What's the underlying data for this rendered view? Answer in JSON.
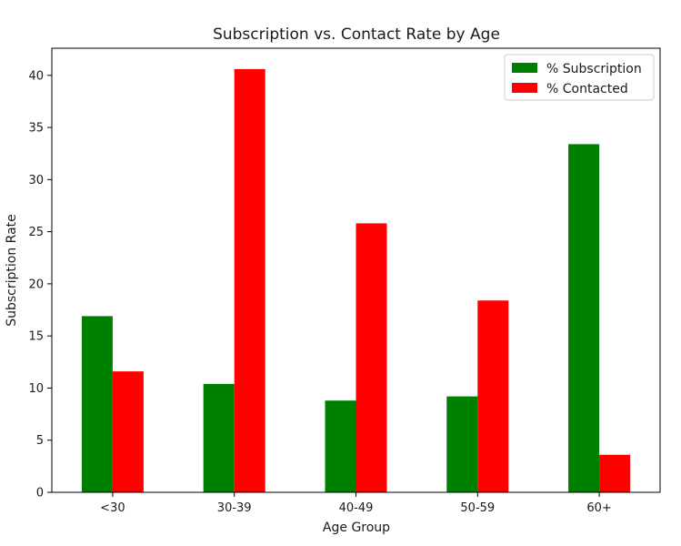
{
  "chart_data": {
    "type": "bar",
    "title": "Subscription vs. Contact Rate by Age",
    "xlabel": "Age Group",
    "ylabel": "Subscription Rate",
    "categories": [
      "<30",
      "30-39",
      "40-49",
      "50-59",
      "60+"
    ],
    "series": [
      {
        "name": "% Subscription",
        "color": "#008000",
        "values": [
          16.9,
          10.4,
          8.8,
          9.2,
          33.4
        ]
      },
      {
        "name": "% Contacted",
        "color": "#ff0000",
        "values": [
          11.6,
          40.6,
          25.8,
          18.4,
          3.6
        ]
      }
    ],
    "ylim": [
      0,
      42.6
    ],
    "yticks": [
      0,
      5,
      10,
      15,
      20,
      25,
      30,
      35,
      40
    ],
    "grid": false,
    "legend_position": "top-right"
  }
}
